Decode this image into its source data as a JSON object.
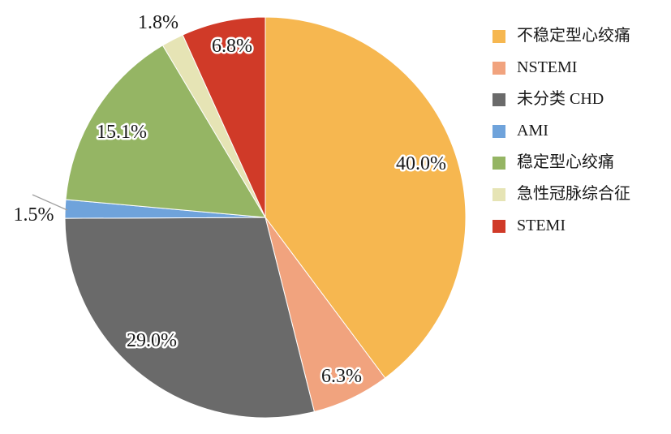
{
  "chart_data": {
    "type": "pie",
    "title": "",
    "legend_position": "right",
    "start_angle_deg": 0,
    "direction": "clockwise",
    "background_color": "#ffffff",
    "label_color": "#1a1a1a",
    "leader_line_color": "#a0a0a0",
    "slices": [
      {
        "label": "不稳定型心绞痛",
        "value": 40.0,
        "display": "40.0%",
        "color": "#F6B750",
        "label_placement": "inside"
      },
      {
        "label": "NSTEMI",
        "value": 6.3,
        "display": "6.3%",
        "color": "#F1A37E",
        "label_placement": "inside"
      },
      {
        "label": "未分类 CHD",
        "value": 29.0,
        "display": "29.0%",
        "color": "#6A6A6A",
        "label_placement": "inside"
      },
      {
        "label": "AMI",
        "value": 1.5,
        "display": "1.5%",
        "color": "#6FA3DB",
        "label_placement": "outside-leader"
      },
      {
        "label": "稳定型心绞痛",
        "value": 15.1,
        "display": "15.1%",
        "color": "#95B564",
        "label_placement": "inside"
      },
      {
        "label": "急性冠脉综合征",
        "value": 1.8,
        "display": "1.8%",
        "color": "#E6E4B5",
        "label_placement": "outside"
      },
      {
        "label": "STEMI",
        "value": 6.8,
        "display": "6.8%",
        "color": "#D03A28",
        "label_placement": "inside"
      }
    ]
  }
}
